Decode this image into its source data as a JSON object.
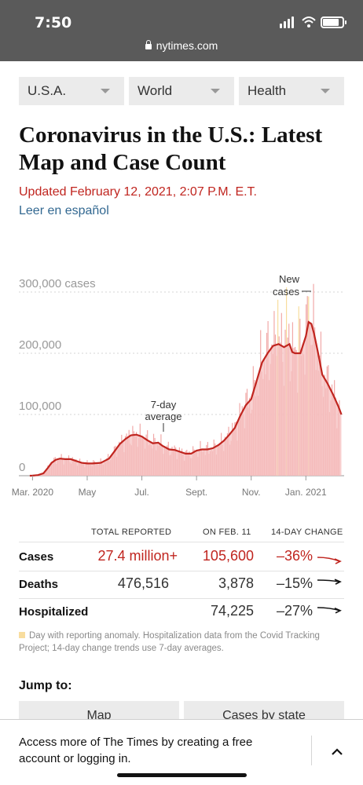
{
  "status": {
    "time": "7:50"
  },
  "browser": {
    "url": "nytimes.com"
  },
  "nav": {
    "items": [
      {
        "label": "U.S.A."
      },
      {
        "label": "World"
      },
      {
        "label": "Health"
      }
    ]
  },
  "article": {
    "headline": "Coronavirus in the U.S.: Latest Map and Case Count",
    "updated": "Updated February 12, 2021, 2:07 P.M. E.T.",
    "spanish_link": "Leer en español"
  },
  "chart_data": {
    "type": "area",
    "ytick_labels": [
      "300,000 cases",
      "200,000",
      "100,000",
      "0"
    ],
    "yticks": [
      300000,
      200000,
      100000,
      0
    ],
    "ylim": [
      0,
      300000
    ],
    "xtick_labels": [
      "Mar. 2020",
      "May",
      "Jul.",
      "Sept.",
      "Nov.",
      "Jan. 2021"
    ],
    "xtick_values": [
      0,
      2,
      4,
      6,
      8,
      10
    ],
    "xlim": [
      -0.5,
      11.4
    ],
    "annotations": [
      {
        "text": "New cases"
      },
      {
        "text": "7-day average"
      }
    ],
    "series": [
      {
        "name": "7-day average",
        "color": "#c0251f",
        "x": [
          -0.1,
          0,
          0.2,
          0.4,
          0.55,
          0.7,
          0.85,
          1.0,
          1.2,
          1.4,
          1.6,
          1.8,
          2.0,
          2.2,
          2.5,
          2.8,
          3.0,
          3.2,
          3.4,
          3.6,
          3.8,
          4.0,
          4.2,
          4.4,
          4.6,
          4.75,
          5.0,
          5.2,
          5.4,
          5.6,
          5.8,
          6.0,
          6.2,
          6.4,
          6.6,
          6.8,
          7.0,
          7.2,
          7.4,
          7.6,
          7.8,
          8.0,
          8.2,
          8.4,
          8.6,
          8.8,
          9.0,
          9.2,
          9.4,
          9.5,
          9.6,
          9.8,
          10.0,
          10.1,
          10.2,
          10.3,
          10.45,
          10.6,
          10.8,
          11.0,
          11.2,
          11.3
        ],
        "values": [
          0,
          100,
          1000,
          4000,
          12000,
          21000,
          26000,
          28000,
          27000,
          27000,
          24000,
          21000,
          20000,
          20000,
          21000,
          28000,
          40000,
          52000,
          60000,
          66000,
          67000,
          64000,
          58000,
          53000,
          54000,
          49000,
          43000,
          42000,
          39000,
          36000,
          36000,
          41000,
          43000,
          43000,
          45000,
          50000,
          57000,
          67000,
          78000,
          98000,
          115000,
          125000,
          155000,
          185000,
          200000,
          212000,
          215000,
          210000,
          215000,
          202000,
          200000,
          200000,
          228000,
          251000,
          248000,
          232000,
          200000,
          165000,
          150000,
          132000,
          112000,
          100000
        ]
      }
    ],
    "daily_bars_shown": true,
    "anomaly_bar_color": "#f8dd9e",
    "fill_color": "#f6c2c1",
    "grid": "dashed horizontal"
  },
  "table": {
    "headers": {
      "total": "TOTAL REPORTED",
      "day": "ON FEB. 11",
      "change": "14-DAY CHANGE"
    },
    "rows": [
      {
        "label": "Cases",
        "total": "27.4 million+",
        "day": "105,600",
        "change": "–36%",
        "trend_color": "#c0251f",
        "trend_slope": -0.36
      },
      {
        "label": "Deaths",
        "total": "476,516",
        "day": "3,878",
        "change": "–15%",
        "trend_color": "#121212",
        "trend_slope": -0.15
      },
      {
        "label": "Hospitalized",
        "total": "",
        "day": "74,225",
        "change": "–27%",
        "trend_color": "#121212",
        "trend_slope": -0.27
      }
    ]
  },
  "note": "Day with reporting anomaly. Hospitalization data from the Covid Tracking Project; 14-day change trends use 7-day averages.",
  "jump": {
    "title": "Jump to:",
    "buttons": [
      {
        "label": "Map"
      },
      {
        "label": "Cases by state"
      }
    ]
  },
  "banner": {
    "text": "Access more of The Times by creating a free account or logging in."
  }
}
